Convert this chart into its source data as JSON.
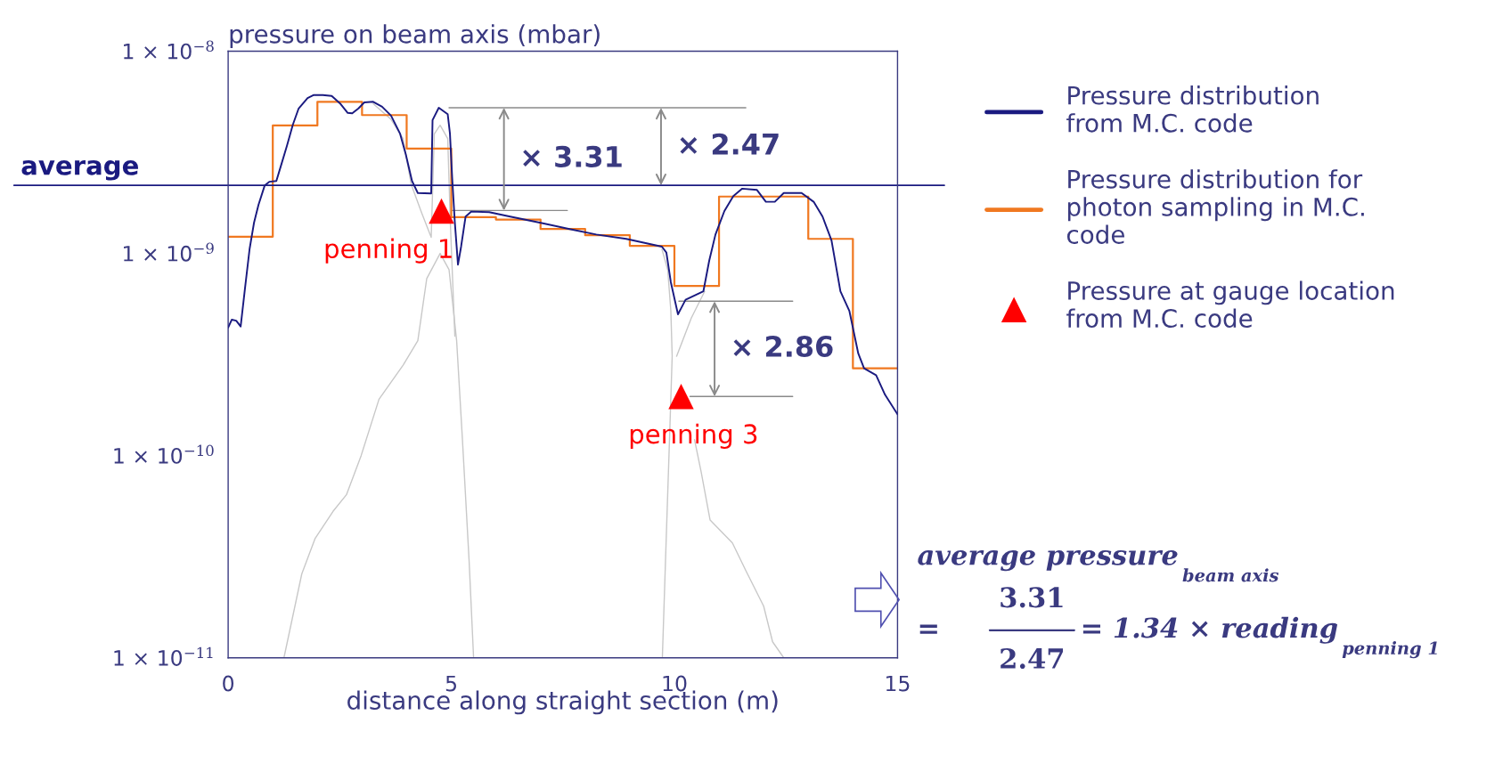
{
  "chart_data": {
    "type": "line",
    "ylabel": "pressure on beam axis (mbar)",
    "xlabel": "distance along straight section (m)",
    "xlim": [
      0,
      15
    ],
    "xticks": [
      0,
      5,
      10,
      15
    ],
    "ylim": [
      1e-11,
      1e-08
    ],
    "yticks": [
      {
        "value": 1e-11,
        "label": "1 × 10$^{−11}$"
      },
      {
        "value": 1e-10,
        "label": "1 × 10$^{−10}$"
      },
      {
        "value": 1e-09,
        "label": "1 × 10$^{−9}$"
      },
      {
        "value": 1e-08,
        "label": "1 × 10$^{−8}$"
      }
    ],
    "log": "y",
    "grid": false,
    "legend": "right",
    "series": [
      {
        "color": "#c8c8c8",
        "x": [
          1.25,
          1.65,
          1.95,
          2.35,
          2.65,
          2.98,
          3.38,
          3.92,
          4.25,
          4.45,
          4.75,
          4.95,
          5.12,
          5.25,
          5.4,
          5.5
        ],
        "values": [
          1e-11,
          2.6e-11,
          3.9e-11,
          5.3e-11,
          6.4e-11,
          1e-10,
          1.9e-10,
          2.8e-10,
          3.7e-10,
          7.5e-10,
          1e-09,
          8.3e-10,
          3.7e-10,
          1.2e-10,
          3e-11,
          1e-11
        ]
      },
      {
        "color": "#c8c8c8",
        "x": [
          3.25,
          3.65,
          3.92,
          4.1,
          4.33,
          4.55,
          4.62,
          4.75,
          4.92,
          4.98,
          5.08
        ],
        "values": [
          5.5e-09,
          4.6e-09,
          3.7e-09,
          2.2e-09,
          1.6e-09,
          1.2e-09,
          3.9e-09,
          4.3e-09,
          3.7e-09,
          1.4e-09,
          3.9e-10
        ]
      },
      {
        "color": "#c8c8c8",
        "x": [
          9.72,
          9.85,
          9.92,
          9.95,
          9.9,
          9.8,
          9.73
        ],
        "values": [
          1.05e-09,
          8.3e-10,
          5.2e-10,
          3.1e-10,
          1.4e-10,
          3e-11,
          1e-11
        ]
      },
      {
        "color": "#c8c8c8",
        "x": [
          10.68,
          10.38,
          10.05,
          10.25,
          10.45,
          10.6,
          10.8,
          11.3,
          11.6,
          12.0,
          12.2,
          12.45
        ],
        "values": [
          6.5e-10,
          4.8e-10,
          3.1e-10,
          null,
          1.2e-10,
          8.3e-11,
          4.8e-11,
          3.7e-11,
          2.7e-11,
          1.8e-11,
          1.2e-11,
          1e-11
        ]
      },
      {
        "color": "#8a8a8a",
        "x": [
          4.95,
          11.6
        ],
        "values": [
          5.25e-09,
          5.25e-09
        ]
      },
      {
        "color": "#8a8a8a",
        "x": [
          5.0,
          7.6
        ],
        "values": [
          1.63e-09,
          1.63e-09
        ]
      },
      {
        "color": "#8a8a8a",
        "x": [
          10.1,
          12.65
        ],
        "values": [
          5.8e-10,
          5.8e-10
        ]
      },
      {
        "color": "#8a8a8a",
        "x": [
          10.35,
          12.65
        ],
        "values": [
          1.96e-10,
          1.96e-10
        ]
      },
      {
        "color": "#8a8a8a",
        "x": [
          6.18,
          6.18
        ],
        "values": [
          5.25e-09,
          1.63e-09
        ]
      },
      {
        "color": "#8a8a8a",
        "x": [
          9.7,
          9.7
        ],
        "values": [
          5.25e-09,
          2.17e-09
        ]
      },
      {
        "color": "#8a8a8a",
        "x": [
          10.9,
          10.9
        ],
        "values": [
          5.8e-10,
          1.96e-10
        ]
      },
      {
        "name": "Pressure distribution\nfrom M.C. code",
        "color": "#1a1a80",
        "x": [
          0.0,
          0.08,
          0.18,
          0.28,
          0.38,
          0.48,
          0.58,
          0.68,
          0.82,
          0.92,
          1.08,
          1.18,
          1.32,
          1.45,
          1.58,
          1.78,
          1.92,
          2.12,
          2.32,
          2.52,
          2.68,
          2.78,
          2.92,
          3.05,
          3.25,
          3.45,
          3.65,
          3.85,
          3.98,
          4.12,
          4.25,
          4.55,
          4.58,
          4.72,
          4.92,
          4.97,
          5.02,
          5.08,
          5.15,
          5.22,
          5.32,
          5.45,
          5.85,
          6.32,
          6.98,
          7.65,
          8.25,
          8.92,
          9.72,
          9.82,
          9.92,
          10.08,
          10.25,
          10.65,
          10.78,
          10.92,
          11.12,
          11.32,
          11.52,
          11.85,
          12.05,
          12.25,
          12.45,
          12.85,
          13.12,
          13.32,
          13.52,
          13.72,
          13.92,
          14.12,
          14.25,
          14.52,
          14.72,
          15.0
        ],
        "values": [
          4.3e-10,
          4.7e-10,
          4.65e-10,
          4.35e-10,
          6.8e-10,
          1.05e-09,
          1.42e-09,
          1.74e-09,
          2.17e-09,
          2.26e-09,
          2.28e-09,
          2.7e-09,
          3.42e-09,
          4.33e-09,
          5.21e-09,
          5.87e-09,
          6.07e-09,
          6.07e-09,
          6.01e-09,
          5.48e-09,
          4.95e-09,
          4.93e-09,
          5.21e-09,
          5.58e-09,
          5.62e-09,
          5.31e-09,
          4.8e-09,
          3.92e-09,
          3.09e-09,
          2.28e-09,
          1.99e-09,
          1.98e-09,
          4.56e-09,
          5.25e-09,
          4.88e-09,
          3.92e-09,
          2.36e-09,
          1.42e-09,
          8.8e-10,
          1.08e-09,
          1.52e-09,
          1.61e-09,
          1.6e-09,
          1.52e-09,
          1.42e-09,
          1.32e-09,
          1.24e-09,
          1.18e-09,
          1.08e-09,
          1.01e-09,
          7.2e-10,
          5e-10,
          5.9e-10,
          6.5e-10,
          9.2e-10,
          1.24e-09,
          1.62e-09,
          1.92e-09,
          2.09e-09,
          2.06e-09,
          1.8e-09,
          1.8e-09,
          1.99e-09,
          1.99e-09,
          1.8e-09,
          1.52e-09,
          1.16e-09,
          6.5e-10,
          5.2e-10,
          3.2e-10,
          2.7e-10,
          2.5e-10,
          2e-10,
          1.6e-10
        ]
      },
      {
        "type": "step",
        "name": "Pressure distribution for\nphoton sampling in M.C.\ncode",
        "color": "#f07820",
        "x": [
          0,
          1,
          2,
          3,
          4,
          5,
          6,
          7,
          8,
          9,
          10,
          11,
          12,
          13,
          14,
          15
        ],
        "values": [
          1.21e-09,
          4.29e-09,
          5.62e-09,
          4.83e-09,
          3.3e-09,
          1.51e-09,
          1.47e-09,
          1.32e-09,
          1.23e-09,
          1.09e-09,
          6.9e-10,
          1.91e-09,
          1.91e-09,
          1.18e-09,
          2.7e-10,
          2.7e-10
        ]
      },
      {
        "type": "scatter",
        "name": "Pressure at gauge location\nfrom M.C. code",
        "color": "#ff0000",
        "marker": "triangle",
        "x": [
          4.78,
          10.15
        ],
        "values": [
          1.62e-09,
          1.96e-10
        ]
      }
    ],
    "ref_lines": [
      {
        "axis": "y",
        "value": 2.17e-09,
        "label": "average",
        "color": "#1a1a80"
      }
    ],
    "annotations": [
      "× 3.31",
      "× 2.47",
      "× 2.86",
      {
        "text": "penning 1",
        "x": 4.78,
        "y": 1.62e-09
      },
      {
        "text": "penning 3",
        "x": 10.15,
        "y": 1.96e-10
      },
      "average pressure",
      "beam axis",
      "=",
      "3.31",
      "2.47",
      "= 1.34 × reading",
      "penning 1"
    ]
  }
}
